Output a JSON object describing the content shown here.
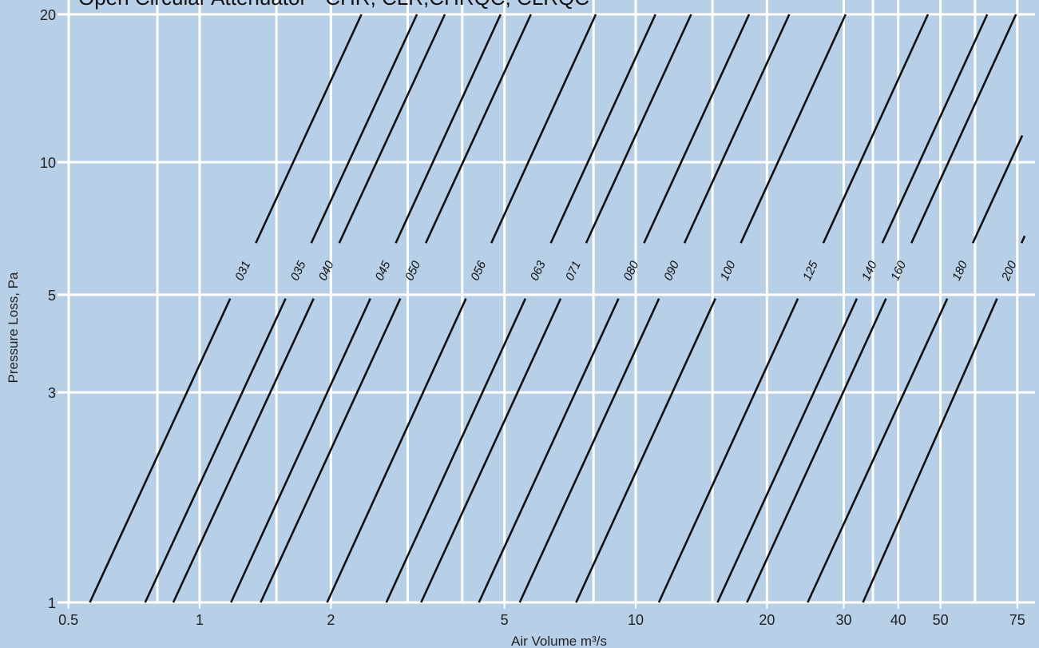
{
  "chart_data": {
    "type": "line",
    "title": "Open Circular Attenuator - CHR, CLR,CHRQC, CLRQC",
    "xlabel": "Air Volume m³/s",
    "ylabel": "Pressure Loss, Pa",
    "xscale": "log",
    "yscale": "log",
    "xlim": [
      0.5,
      78
    ],
    "ylim": [
      1,
      20
    ],
    "grid": true,
    "x_ticks": [
      0.5,
      1,
      2,
      5,
      10,
      20,
      30,
      40,
      50,
      75
    ],
    "x_tick_labels": [
      "0.5",
      "1",
      "2",
      "5",
      "10",
      "20",
      "30",
      "40",
      "50",
      "75"
    ],
    "x_gridlines": [
      0.8,
      1,
      1.5,
      2,
      3,
      4,
      5,
      8,
      10,
      15,
      20,
      30,
      35,
      40,
      50,
      60,
      75
    ],
    "y_ticks": [
      1,
      3,
      5,
      10,
      20
    ],
    "y_tick_labels": [
      "1",
      "3",
      "5",
      "10",
      "20"
    ],
    "series": [
      {
        "name": "031",
        "x": [
          0.56,
          2.35
        ],
        "y": [
          1,
          20
        ]
      },
      {
        "name": "035",
        "x": [
          0.75,
          3.15
        ],
        "y": [
          1,
          20
        ]
      },
      {
        "name": "040",
        "x": [
          0.87,
          3.65
        ],
        "y": [
          1,
          20
        ]
      },
      {
        "name": "045",
        "x": [
          1.18,
          4.9
        ],
        "y": [
          1,
          20
        ]
      },
      {
        "name": "050",
        "x": [
          1.38,
          5.75
        ],
        "y": [
          1,
          20
        ]
      },
      {
        "name": "056",
        "x": [
          1.96,
          8.1
        ],
        "y": [
          1,
          20
        ]
      },
      {
        "name": "063",
        "x": [
          2.68,
          11.1
        ],
        "y": [
          1,
          20
        ]
      },
      {
        "name": "071",
        "x": [
          3.22,
          13.4
        ],
        "y": [
          1,
          20
        ]
      },
      {
        "name": "080",
        "x": [
          4.37,
          18.2
        ],
        "y": [
          1,
          20
        ]
      },
      {
        "name": "090",
        "x": [
          5.42,
          22.5
        ],
        "y": [
          1,
          20
        ]
      },
      {
        "name": "100",
        "x": [
          7.3,
          30.3
        ],
        "y": [
          1,
          20
        ]
      },
      {
        "name": "125",
        "x": [
          11.3,
          46.8
        ],
        "y": [
          1,
          20
        ]
      },
      {
        "name": "140",
        "x": [
          15.4,
          64
        ],
        "y": [
          1,
          20
        ]
      },
      {
        "name": "160",
        "x": [
          18,
          74.5
        ],
        "y": [
          1,
          20
        ]
      },
      {
        "name": "180",
        "x": [
          24.8,
          77
        ],
        "y": [
          1,
          11.5
        ]
      },
      {
        "name": "200",
        "x": [
          33.2,
          78
        ],
        "y": [
          1,
          6.8
        ]
      }
    ],
    "background": "#b8cfe8",
    "grid_color": "#ffffff",
    "line_color": "#111111"
  }
}
